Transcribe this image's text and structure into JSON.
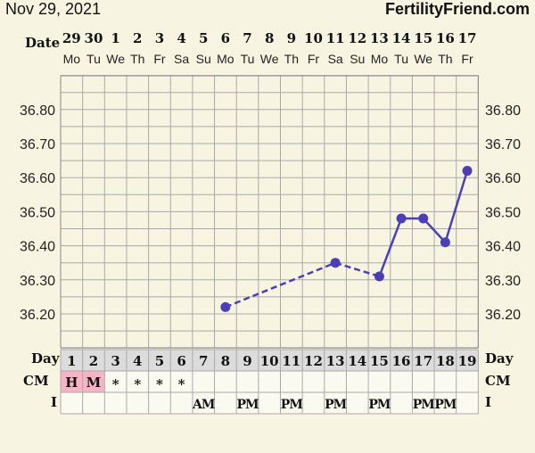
{
  "header": {
    "date": "Nov 29, 2021",
    "brand": "FertilityFriend.com"
  },
  "colors": {
    "background": "#f8f4e2",
    "grid": "#a9a9a9",
    "line": "#4b3fb3",
    "cm_mark": "#f6b4c6",
    "day_row": "#dcdcdc"
  },
  "chart_data": {
    "type": "line",
    "row_labels": {
      "date": "Date",
      "day": "Day",
      "cm": "CM",
      "intercourse": "I"
    },
    "dates": [
      "29",
      "30",
      "1",
      "2",
      "3",
      "4",
      "5",
      "6",
      "7",
      "8",
      "9",
      "10",
      "11",
      "12",
      "13",
      "14",
      "15",
      "16",
      "17"
    ],
    "weekdays": [
      "Mo",
      "Tu",
      "We",
      "Th",
      "Fr",
      "Sa",
      "Su",
      "Mo",
      "Tu",
      "We",
      "Th",
      "Fr",
      "Sa",
      "Su",
      "Mo",
      "Tu",
      "We",
      "Th",
      "Fr"
    ],
    "cycle_days": [
      "1",
      "2",
      "3",
      "4",
      "5",
      "6",
      "7",
      "8",
      "9",
      "10",
      "11",
      "12",
      "13",
      "14",
      "15",
      "16",
      "17",
      "18",
      "19"
    ],
    "cervical_mucus": [
      "H",
      "M",
      "*",
      "*",
      "*",
      "*",
      "",
      "",
      "",
      "",
      "",
      "",
      "",
      "",
      "",
      "",
      "",
      "",
      ""
    ],
    "intercourse": [
      "",
      "",
      "",
      "",
      "",
      "",
      "AM",
      "",
      "PM",
      "",
      "PM",
      "",
      "PM",
      "",
      "PM",
      "",
      "PM",
      "PM",
      ""
    ],
    "y_ticks": [
      "36.20",
      "36.30",
      "36.40",
      "36.50",
      "36.60",
      "36.70",
      "36.80"
    ],
    "ylim": [
      36.1,
      36.9
    ],
    "temperatures": [
      null,
      null,
      null,
      null,
      null,
      null,
      null,
      36.22,
      null,
      null,
      null,
      null,
      36.35,
      null,
      36.31,
      36.48,
      36.48,
      36.41,
      36.62
    ],
    "segments": [
      {
        "from_day": 8,
        "to_day": 13,
        "style": "dashed"
      },
      {
        "from_day": 13,
        "to_day": 15,
        "style": "dashed"
      },
      {
        "from_day": 15,
        "to_day": 16,
        "style": "solid"
      },
      {
        "from_day": 16,
        "to_day": 17,
        "style": "solid"
      },
      {
        "from_day": 17,
        "to_day": 18,
        "style": "solid"
      },
      {
        "from_day": 18,
        "to_day": 19,
        "style": "solid"
      }
    ]
  }
}
